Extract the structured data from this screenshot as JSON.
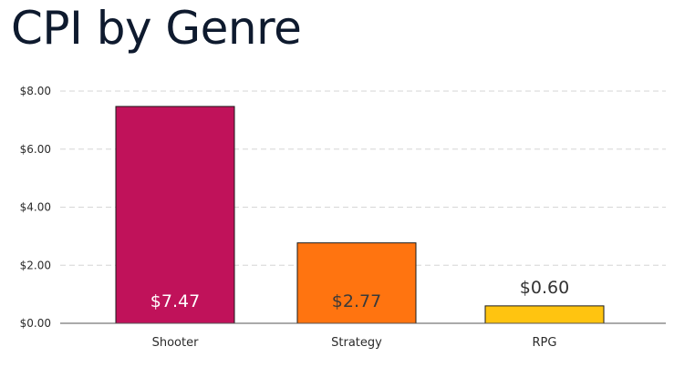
{
  "chart_data": {
    "type": "bar",
    "title": "CPI by Genre",
    "xlabel": "",
    "ylabel": "",
    "categories": [
      "Shooter",
      "Strategy",
      "RPG"
    ],
    "values": [
      7.47,
      2.77,
      0.6
    ],
    "value_labels": [
      "$7.47",
      "$2.77",
      "$0.60"
    ],
    "label_positions": [
      "inside",
      "inside",
      "outside"
    ],
    "colors": [
      "#C0125A",
      "#FF7410",
      "#FFC410"
    ],
    "label_colors": [
      "#ffffff",
      "#3a3a3a",
      "#333333"
    ],
    "yticks": [
      0,
      2,
      4,
      6,
      8
    ],
    "ytick_labels": [
      "$0.00",
      "$2.00",
      "$4.00",
      "$6.00",
      "$8.00"
    ],
    "ylim": [
      0,
      8
    ],
    "grid": true,
    "legend": "none"
  }
}
